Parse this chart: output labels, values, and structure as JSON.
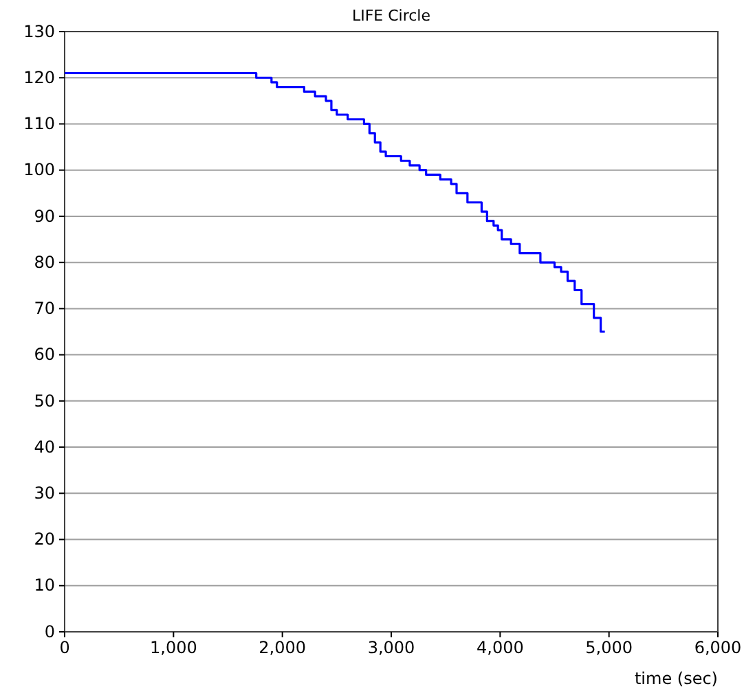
{
  "chart_data": {
    "type": "step",
    "title": "LIFE Circle",
    "xlabel": "time (sec)",
    "x": [
      0,
      1760,
      1900,
      1950,
      2200,
      2300,
      2400,
      2450,
      2500,
      2600,
      2750,
      2800,
      2850,
      2900,
      2950,
      3090,
      3170,
      3260,
      3320,
      3450,
      3550,
      3600,
      3700,
      3830,
      3880,
      3940,
      3980,
      4015,
      4100,
      4180,
      4370,
      4500,
      4560,
      4620,
      4685,
      4748,
      4861,
      4924,
      4962
    ],
    "series": [
      {
        "color": "#0000ff",
        "values": [
          121,
          120,
          119,
          118,
          117,
          116,
          115,
          113,
          112,
          111,
          110,
          108,
          106,
          104,
          103,
          102,
          101,
          100,
          99,
          98,
          97,
          95,
          93,
          91,
          89,
          88,
          87,
          85,
          84,
          82,
          80,
          79,
          78,
          76,
          74,
          71,
          68,
          65,
          65
        ]
      }
    ],
    "xlim": [
      0,
      6000
    ],
    "xticks": [
      0,
      {
        "value": 1000,
        "label": "1,000"
      },
      {
        "value": 2000,
        "label": "2,000"
      },
      {
        "value": 3000,
        "label": "3,000"
      },
      {
        "value": 4000,
        "label": "4,000"
      },
      {
        "value": 5000,
        "label": "5,000"
      },
      {
        "value": 6000,
        "label": "6,000"
      }
    ],
    "ylim": [
      0,
      130
    ],
    "yticks": [
      0,
      10,
      20,
      30,
      40,
      50,
      60,
      70,
      80,
      90,
      100,
      110,
      120,
      130
    ],
    "grid": "y"
  }
}
